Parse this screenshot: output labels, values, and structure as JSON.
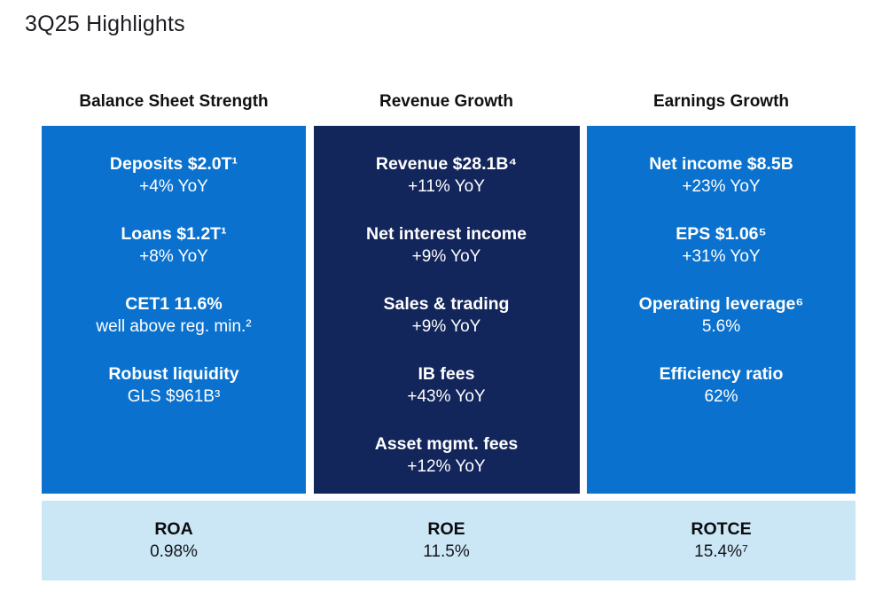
{
  "page": {
    "title": "3Q25 Highlights"
  },
  "colors": {
    "accent_blue": "#0A72CE",
    "navy": "#13265C",
    "light_blue": "#CBE7F6",
    "title_text": "#1B1C20",
    "header_text": "#111111",
    "box_text": "#FFFFFF"
  },
  "columns": [
    {
      "header": "Balance Sheet Strength",
      "theme": "blue",
      "items": [
        {
          "label": "Deposits $2.0T¹",
          "value": "+4% YoY"
        },
        {
          "label": "Loans $1.2T¹",
          "value": "+8% YoY"
        },
        {
          "label": "CET1 11.6%",
          "value": "well above reg. min.²"
        },
        {
          "label": "Robust liquidity",
          "value": "GLS $961B³"
        }
      ],
      "metric": {
        "label": "ROA",
        "value": "0.98%"
      }
    },
    {
      "header": "Revenue Growth",
      "theme": "navy",
      "items": [
        {
          "label": "Revenue $28.1B⁴",
          "value": "+11% YoY"
        },
        {
          "label": "Net interest income",
          "value": "+9% YoY"
        },
        {
          "label": "Sales & trading",
          "value": "+9% YoY"
        },
        {
          "label": "IB fees",
          "value": "+43% YoY"
        },
        {
          "label": "Asset mgmt. fees",
          "value": "+12% YoY"
        }
      ],
      "metric": {
        "label": "ROE",
        "value": "11.5%"
      }
    },
    {
      "header": "Earnings Growth",
      "theme": "blue",
      "items": [
        {
          "label": "Net income $8.5B",
          "value": "+23% YoY"
        },
        {
          "label": "EPS $1.06⁵",
          "value": "+31% YoY"
        },
        {
          "label": "Operating leverage⁶",
          "value": "5.6%"
        },
        {
          "label": "Efficiency ratio",
          "value": "62%"
        }
      ],
      "metric": {
        "label": "ROTCE",
        "value": "15.4%⁷"
      }
    }
  ]
}
